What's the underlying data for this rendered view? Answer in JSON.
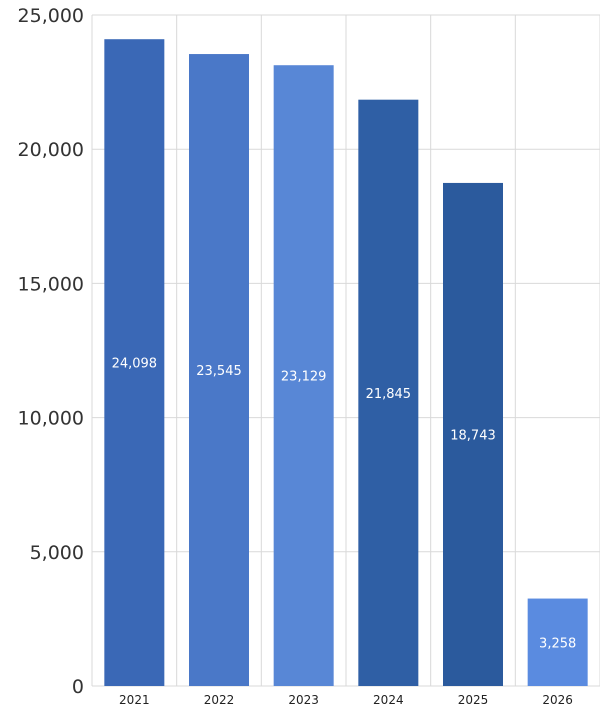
{
  "chart_data": {
    "type": "bar",
    "categories": [
      "2021",
      "2022",
      "2023",
      "2024",
      "2025",
      "2026"
    ],
    "values": [
      24098,
      23545,
      23129,
      21845,
      18743,
      3258
    ],
    "data_labels": [
      "24,098",
      "23,545",
      "23,129",
      "21,845",
      "18,743",
      "3,258"
    ],
    "y_ticks": [
      0,
      5000,
      10000,
      15000,
      20000,
      25000
    ],
    "y_tick_labels": [
      "0",
      "5,000",
      "10,000",
      "15,000",
      "20,000",
      "25,000"
    ],
    "ylim": [
      0,
      25000
    ],
    "grid": true,
    "legend": "none",
    "bar_colors": [
      "#3a68b6",
      "#4a78c8",
      "#5887d6",
      "#2f5fa5",
      "#2b5a9d",
      "#5a8be0"
    ],
    "label_color": "#ffffff",
    "grid_color": "#d9d9d9"
  }
}
